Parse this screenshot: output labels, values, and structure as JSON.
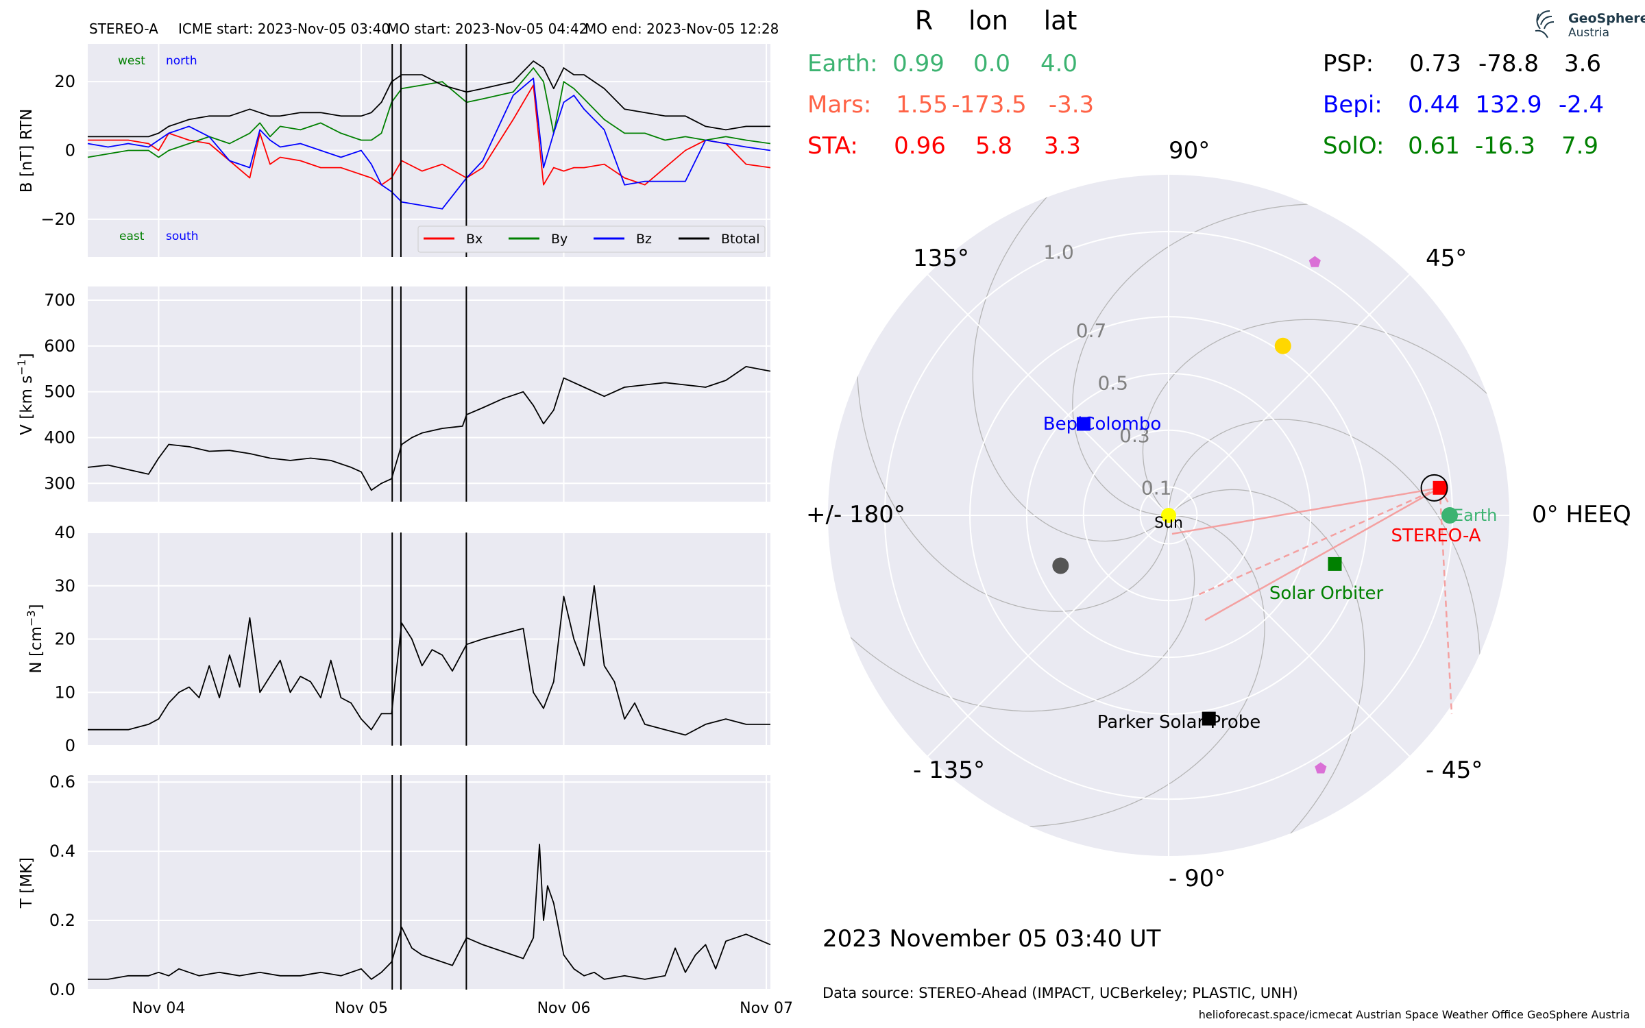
{
  "chart_data": [
    {
      "type": "line",
      "panel": "magnetic-field",
      "title_parts": {
        "spacecraft": "STEREO-A",
        "icme_start": "ICME start: 2023-Nov-05 03:40",
        "mo_start": "MO start: 2023-Nov-05 04:42",
        "mo_end": "MO end: 2023-Nov-05 12:28"
      },
      "ylabel": "B [nT] RTN",
      "ylim": [
        -31,
        31
      ],
      "yticks": [
        -20,
        0,
        20
      ],
      "x_ticks": [
        "Nov 04",
        "Nov 05",
        "Nov 06",
        "Nov 07"
      ],
      "x_range_days": [
        3.65,
        7.02
      ],
      "event_lines_days": [
        5.153,
        5.196,
        5.519
      ],
      "annotations": {
        "west": "west",
        "north": "north",
        "east": "east",
        "south": "south"
      },
      "grid": true,
      "legend_position": "bottom-right",
      "series": [
        {
          "name": "Bx",
          "color": "#ff0000",
          "x": [
            3.65,
            3.75,
            3.85,
            3.95,
            4.0,
            4.05,
            4.15,
            4.25,
            4.35,
            4.45,
            4.5,
            4.55,
            4.6,
            4.7,
            4.8,
            4.9,
            5.0,
            5.05,
            5.1,
            5.15,
            5.2,
            5.3,
            5.4,
            5.52,
            5.6,
            5.75,
            5.85,
            5.9,
            5.95,
            6.0,
            6.05,
            6.1,
            6.2,
            6.3,
            6.4,
            6.5,
            6.6,
            6.7,
            6.8,
            6.9,
            7.02
          ],
          "values": [
            3,
            3,
            3,
            2,
            0,
            5,
            3,
            2,
            -3,
            -8,
            5,
            -4,
            -2,
            -3,
            -5,
            -5,
            -7,
            -8,
            -10,
            -8,
            -3,
            -6,
            -4,
            -8,
            -5,
            9,
            19,
            -10,
            -5,
            -6,
            -5,
            -5,
            -4,
            -8,
            -10,
            -5,
            0,
            3,
            2,
            -4,
            -5
          ]
        },
        {
          "name": "By",
          "color": "#008000",
          "x": [
            3.65,
            3.75,
            3.85,
            3.95,
            4.0,
            4.05,
            4.15,
            4.25,
            4.35,
            4.45,
            4.5,
            4.55,
            4.6,
            4.7,
            4.8,
            4.9,
            5.0,
            5.05,
            5.1,
            5.15,
            5.2,
            5.3,
            5.4,
            5.52,
            5.6,
            5.75,
            5.85,
            5.9,
            5.95,
            6.0,
            6.05,
            6.1,
            6.2,
            6.3,
            6.4,
            6.5,
            6.6,
            6.7,
            6.8,
            6.9,
            7.02
          ],
          "values": [
            -2,
            -1,
            0,
            0,
            -2,
            0,
            2,
            4,
            2,
            5,
            8,
            4,
            7,
            6,
            8,
            5,
            3,
            3,
            5,
            14,
            18,
            19,
            20,
            14,
            15,
            17,
            24,
            20,
            5,
            20,
            18,
            15,
            9,
            5,
            5,
            3,
            4,
            3,
            4,
            3,
            2
          ]
        },
        {
          "name": "Bz",
          "color": "#0000ff",
          "x": [
            3.65,
            3.75,
            3.85,
            3.95,
            4.0,
            4.05,
            4.15,
            4.25,
            4.35,
            4.45,
            4.5,
            4.55,
            4.6,
            4.7,
            4.8,
            4.9,
            5.0,
            5.05,
            5.1,
            5.15,
            5.2,
            5.3,
            5.4,
            5.52,
            5.6,
            5.75,
            5.85,
            5.9,
            5.95,
            6.0,
            6.05,
            6.1,
            6.2,
            6.3,
            6.4,
            6.5,
            6.6,
            6.7,
            6.8,
            6.9,
            7.02
          ],
          "values": [
            2,
            1,
            2,
            1,
            3,
            5,
            7,
            4,
            -3,
            -5,
            6,
            3,
            1,
            2,
            0,
            -2,
            0,
            -4,
            -10,
            -12,
            -15,
            -16,
            -17,
            -8,
            -3,
            16,
            21,
            -5,
            5,
            14,
            16,
            12,
            6,
            -10,
            -9,
            -9,
            -9,
            3,
            2,
            1,
            0
          ]
        },
        {
          "name": "Btotal",
          "color": "#000000",
          "x": [
            3.65,
            3.75,
            3.85,
            3.95,
            4.0,
            4.05,
            4.15,
            4.25,
            4.35,
            4.45,
            4.5,
            4.55,
            4.6,
            4.7,
            4.8,
            4.9,
            5.0,
            5.05,
            5.1,
            5.15,
            5.2,
            5.3,
            5.4,
            5.52,
            5.6,
            5.75,
            5.85,
            5.9,
            5.95,
            6.0,
            6.05,
            6.1,
            6.2,
            6.3,
            6.4,
            6.5,
            6.6,
            6.7,
            6.8,
            6.9,
            7.02
          ],
          "values": [
            4,
            4,
            4,
            4,
            5,
            7,
            9,
            10,
            10,
            12,
            11,
            10,
            10,
            11,
            11,
            10,
            10,
            11,
            14,
            20,
            22,
            22,
            19,
            17,
            18,
            20,
            26,
            24,
            18,
            24,
            22,
            22,
            18,
            12,
            11,
            10,
            10,
            7,
            6,
            7,
            7
          ]
        }
      ]
    },
    {
      "type": "line",
      "panel": "velocity",
      "ylabel": "V [km s^-1]",
      "ylabel_main": "V [km s",
      "ylabel_sup": "−1",
      "ylabel_close": "]",
      "ylim": [
        260,
        730
      ],
      "yticks": [
        300,
        400,
        500,
        600,
        700
      ],
      "x_range_days": [
        3.65,
        7.02
      ],
      "event_lines_days": [
        5.153,
        5.196,
        5.519
      ],
      "grid": true,
      "series": [
        {
          "name": "",
          "color": "#000000",
          "x": [
            3.65,
            3.75,
            3.85,
            3.95,
            4.0,
            4.05,
            4.15,
            4.25,
            4.35,
            4.45,
            4.55,
            4.65,
            4.75,
            4.85,
            4.95,
            5.0,
            5.05,
            5.1,
            5.15,
            5.2,
            5.25,
            5.3,
            5.4,
            5.5,
            5.52,
            5.6,
            5.7,
            5.8,
            5.85,
            5.9,
            5.95,
            6.0,
            6.1,
            6.2,
            6.3,
            6.4,
            6.5,
            6.6,
            6.7,
            6.8,
            6.9,
            7.02
          ],
          "values": [
            335,
            340,
            330,
            320,
            355,
            385,
            380,
            370,
            372,
            365,
            355,
            350,
            355,
            350,
            335,
            325,
            285,
            300,
            310,
            385,
            400,
            410,
            420,
            425,
            450,
            465,
            485,
            500,
            470,
            430,
            460,
            530,
            510,
            490,
            510,
            515,
            520,
            515,
            510,
            525,
            555,
            545
          ]
        }
      ]
    },
    {
      "type": "line",
      "panel": "density",
      "ylabel": "N [cm^-3]",
      "ylabel_main": "N [cm",
      "ylabel_sup": "−3",
      "ylabel_close": "]",
      "ylim": [
        0,
        40
      ],
      "yticks": [
        0,
        10,
        20,
        30,
        40
      ],
      "x_range_days": [
        3.65,
        7.02
      ],
      "event_lines_days": [
        5.153,
        5.196,
        5.519
      ],
      "grid": true,
      "series": [
        {
          "name": "",
          "color": "#000000",
          "x": [
            3.65,
            3.75,
            3.85,
            3.95,
            4.0,
            4.05,
            4.1,
            4.15,
            4.2,
            4.25,
            4.3,
            4.35,
            4.4,
            4.45,
            4.5,
            4.55,
            4.6,
            4.65,
            4.7,
            4.75,
            4.8,
            4.85,
            4.9,
            4.95,
            5.0,
            5.05,
            5.1,
            5.15,
            5.2,
            5.25,
            5.3,
            5.35,
            5.4,
            5.45,
            5.52,
            5.6,
            5.7,
            5.8,
            5.85,
            5.9,
            5.95,
            6.0,
            6.05,
            6.1,
            6.15,
            6.2,
            6.25,
            6.3,
            6.35,
            6.4,
            6.5,
            6.6,
            6.7,
            6.8,
            6.9,
            7.02
          ],
          "values": [
            3,
            3,
            3,
            4,
            5,
            8,
            10,
            11,
            9,
            15,
            9,
            17,
            11,
            24,
            10,
            13,
            16,
            10,
            13,
            12,
            9,
            16,
            9,
            8,
            5,
            3,
            6,
            6,
            23,
            20,
            15,
            18,
            17,
            14,
            19,
            20,
            21,
            22,
            10,
            7,
            12,
            28,
            20,
            15,
            30,
            15,
            12,
            5,
            8,
            4,
            3,
            2,
            4,
            5,
            4,
            4
          ]
        }
      ]
    },
    {
      "type": "line",
      "panel": "temperature",
      "ylabel": "T [MK]",
      "ylim": [
        0.0,
        0.62
      ],
      "yticks": [
        0.0,
        0.2,
        0.4,
        0.6
      ],
      "yticklabels": [
        "0.0",
        "0.2",
        "0.4",
        "0.6"
      ],
      "x_range_days": [
        3.65,
        7.02
      ],
      "event_lines_days": [
        5.153,
        5.196,
        5.519
      ],
      "grid": true,
      "series": [
        {
          "name": "",
          "color": "#000000",
          "x": [
            3.65,
            3.75,
            3.85,
            3.95,
            4.0,
            4.05,
            4.1,
            4.15,
            4.2,
            4.3,
            4.4,
            4.5,
            4.6,
            4.7,
            4.8,
            4.9,
            5.0,
            5.05,
            5.1,
            5.15,
            5.2,
            5.25,
            5.3,
            5.35,
            5.4,
            5.45,
            5.52,
            5.6,
            5.7,
            5.8,
            5.85,
            5.88,
            5.9,
            5.92,
            5.95,
            6.0,
            6.05,
            6.1,
            6.15,
            6.2,
            6.3,
            6.4,
            6.5,
            6.55,
            6.6,
            6.65,
            6.7,
            6.75,
            6.8,
            6.9,
            7.02
          ],
          "values": [
            0.03,
            0.03,
            0.04,
            0.04,
            0.05,
            0.04,
            0.06,
            0.05,
            0.04,
            0.05,
            0.04,
            0.05,
            0.04,
            0.04,
            0.05,
            0.04,
            0.06,
            0.03,
            0.05,
            0.08,
            0.18,
            0.12,
            0.1,
            0.09,
            0.08,
            0.07,
            0.15,
            0.13,
            0.11,
            0.09,
            0.15,
            0.42,
            0.2,
            0.3,
            0.25,
            0.1,
            0.06,
            0.04,
            0.05,
            0.03,
            0.04,
            0.03,
            0.04,
            0.12,
            0.05,
            0.1,
            0.13,
            0.06,
            0.14,
            0.16,
            0.13
          ]
        }
      ]
    },
    {
      "type": "scatter",
      "panel": "polar-position-map",
      "table_header": {
        "r": "R",
        "lon": "lon",
        "lat": "lat"
      },
      "table": [
        {
          "label": "Earth:",
          "color": "#3cb371",
          "r": "0.99",
          "lon": "0.0",
          "lat": "4.0"
        },
        {
          "label": "Mars:",
          "color": "#ff6347",
          "r": "1.55",
          "lon": "-173.5",
          "lat": "-3.3"
        },
        {
          "label": "STA:",
          "color": "#ff0000",
          "r": "0.96",
          "lon": "5.8",
          "lat": "3.3"
        },
        {
          "label": "PSP:",
          "color": "#000000",
          "r": "0.73",
          "lon": "-78.8",
          "lat": "3.6"
        },
        {
          "label": "Bepi:",
          "color": "#0000ff",
          "r": "0.44",
          "lon": "132.9",
          "lat": "-2.4"
        },
        {
          "label": "SolO:",
          "color": "#008000",
          "r": "0.61",
          "lon": "-16.3",
          "lat": "7.9"
        }
      ],
      "angle_labels": {
        "a0": "0° HEEQ",
        "a45": "45°",
        "a90": "90°",
        "a135": "135°",
        "a180": "+/- 180°",
        "am135": "- 135°",
        "am90": "- 90°",
        "am45": "- 45°"
      },
      "radial_ticks": [
        "0.1",
        "0.3",
        "0.5",
        "0.7",
        "1.0"
      ],
      "radial_tick_values": [
        0.1,
        0.3,
        0.5,
        0.7,
        1.0
      ],
      "r_max": 1.2,
      "bodies": [
        {
          "name": "Sun",
          "label": "Sun",
          "r": 0.0,
          "lon": 0.0,
          "color": "#ffff00",
          "marker": "circle"
        },
        {
          "name": "Earth",
          "label": "Earth",
          "r": 0.99,
          "lon": 0.0,
          "color": "#3cb371",
          "marker": "circle"
        },
        {
          "name": "STEREO-A",
          "label": "STEREO-A",
          "r": 0.96,
          "lon": 5.8,
          "color": "#ff0000",
          "marker": "square"
        },
        {
          "name": "Parker Solar Probe",
          "label": "Parker Solar Probe",
          "r": 0.73,
          "lon": -78.8,
          "color": "#000000",
          "marker": "square"
        },
        {
          "name": "BepiColombo",
          "label": "BepiColombo",
          "r": 0.44,
          "lon": 132.9,
          "color": "#0000ff",
          "marker": "square"
        },
        {
          "name": "Solar Orbiter",
          "label": "Solar Orbiter",
          "r": 0.61,
          "lon": -16.3,
          "color": "#008000",
          "marker": "square"
        },
        {
          "name": "planet-yellow",
          "label": "",
          "r": 0.72,
          "lon": 56.0,
          "color": "#ffd700",
          "marker": "circle"
        },
        {
          "name": "planet-grey",
          "label": "",
          "r": 0.42,
          "lon": -155.0,
          "color": "#555555",
          "marker": "circle"
        },
        {
          "name": "probe-pink-upper",
          "label": "",
          "r": 1.03,
          "lon": 60.0,
          "color": "#da70d6",
          "marker": "pentagon"
        },
        {
          "name": "probe-pink-lower",
          "label": "",
          "r": 1.04,
          "lon": -59.0,
          "color": "#da70d6",
          "marker": "pentagon"
        }
      ],
      "date": "2023 November 05  03:40 UT",
      "data_source": "Data source: STEREO-Ahead (IMPACT, UCBerkeley; PLASTIC, UNH)",
      "footer": "helioforecast.space/icmecat   Austrian Space Weather Office   GeoSphere Austria"
    }
  ],
  "logo": {
    "line1": "GeoSphere",
    "line2": "Austria",
    "icon": "geosphere-logo-icon"
  },
  "colors": {
    "panel_bg": "#eaeaf2",
    "grid": "#ffffff",
    "stream": "#b5b5b5",
    "cme": "#f4a0a0"
  }
}
